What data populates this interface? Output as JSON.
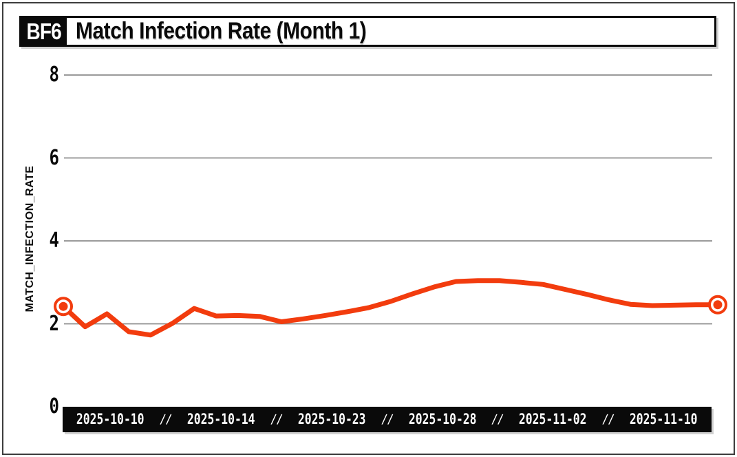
{
  "header": {
    "badge": "BF6",
    "title": "Match Infection Rate (Month 1)"
  },
  "chart_data": {
    "type": "line",
    "title": "Match Infection Rate (Month 1)",
    "xlabel": "",
    "ylabel": "MATCH_INFECTION_RATE",
    "ylim": [
      0,
      8
    ],
    "yticks": [
      0,
      2,
      4,
      6,
      8
    ],
    "grid": true,
    "legend": false,
    "x_tick_labels": [
      "2025-10-10",
      "2025-10-14",
      "2025-10-23",
      "2025-10-28",
      "2025-11-02",
      "2025-11-10"
    ],
    "x_tick_separator": "//",
    "num_points": 31,
    "values": [
      2.42,
      1.93,
      2.24,
      1.81,
      1.73,
      2.01,
      2.37,
      2.19,
      2.2,
      2.18,
      2.05,
      2.12,
      2.2,
      2.29,
      2.39,
      2.54,
      2.72,
      2.89,
      3.02,
      3.04,
      3.04,
      3.0,
      2.95,
      2.83,
      2.71,
      2.58,
      2.47,
      2.44,
      2.45,
      2.46,
      2.46
    ],
    "endpoint_markers": true,
    "colors": {
      "line": "#F23C0E",
      "grid": "#8C8C8C",
      "axis_bar_bg": "#0A0A0A",
      "axis_bar_text": "#FFFFFF",
      "text": "#0A0A0A",
      "background": "#FFFFFF"
    }
  }
}
